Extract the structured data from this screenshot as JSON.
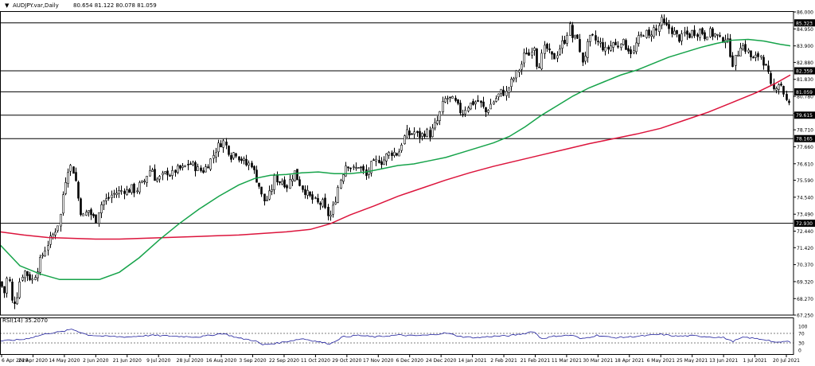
{
  "header": {
    "arrow": "▼",
    "symbol_timeframe": "AUDJPY.var,Daily",
    "ohlc": "80.654 81.122 80.078 81.059"
  },
  "rsi_header": "RSI(14) 35.2070",
  "colors": {
    "background": "#ffffff",
    "candle_up": "#ffffff",
    "candle_down": "#000000",
    "candle_outline": "#000000",
    "ma_fast": "#16a34a",
    "ma_slow": "#dc143c",
    "rsi_line": "#1e1e9c",
    "level_line": "#000000",
    "level_label_bg": "#000000",
    "level_label_text": "#ffffff"
  },
  "chart_data": [
    {
      "type": "candlestick",
      "title": "",
      "symbol": "AUDJPY.var",
      "timeframe": "Daily",
      "last_ohlc": {
        "open": 80.654,
        "high": 81.122,
        "low": 80.078,
        "close": 81.059
      },
      "ylim": [
        67.25,
        86.0
      ],
      "y_ticks": [
        86.0,
        84.95,
        83.9,
        82.88,
        81.83,
        80.78,
        79.73,
        78.71,
        77.66,
        76.61,
        75.59,
        74.54,
        73.49,
        72.44,
        71.42,
        70.37,
        69.32,
        68.27,
        67.25
      ],
      "y_tick_labels": [
        "86.000",
        "84.950",
        "83.900",
        "82.880",
        "81.830",
        "80.780",
        "79.730",
        "78.710",
        "77.660",
        "76.610",
        "75.590",
        "74.540",
        "73.490",
        "72.440",
        "71.420",
        "70.370",
        "69.320",
        "68.270",
        "67.250"
      ],
      "x_tick_labels": [
        "6 Apr 2020",
        "24 Apr 2020",
        "14 May 2020",
        "2 Jun 2020",
        "21 Jun 2020",
        "9 Jul 2020",
        "28 Jul 2020",
        "16 Aug 2020",
        "3 Sep 2020",
        "22 Sep 2020",
        "11 Oct 2020",
        "29 Oct 2020",
        "17 Nov 2020",
        "6 Dec 2020",
        "24 Dec 2020",
        "14 Jan 2021",
        "2 Feb 2021",
        "21 Feb 2021",
        "11 Mar 2021",
        "30 Mar 2021",
        "18 Apr 2021",
        "6 May 2021",
        "25 May 2021",
        "13 Jun 2021",
        "1 Jul 2021",
        "20 Jul 2021"
      ],
      "horizontal_levels": [
        {
          "value": 85.323,
          "label": "85.323"
        },
        {
          "value": 82.359,
          "label": "82.359"
        },
        {
          "value": 81.059,
          "label": "81.059"
        },
        {
          "value": 79.615,
          "label": "79.615"
        },
        {
          "value": 78.165,
          "label": "78.165"
        },
        {
          "value": 72.93,
          "label": "72.930"
        }
      ],
      "price_path": [
        [
          0,
          69.3
        ],
        [
          5,
          68.6
        ],
        [
          10,
          69.9
        ],
        [
          15,
          68.0
        ],
        [
          20,
          68.2
        ],
        [
          25,
          69.5
        ],
        [
          30,
          70.0
        ],
        [
          35,
          69.7
        ],
        [
          40,
          69.4
        ],
        [
          45,
          69.9
        ],
        [
          50,
          70.6
        ],
        [
          55,
          71.2
        ],
        [
          60,
          71.7
        ],
        [
          65,
          72.1
        ],
        [
          70,
          72.6
        ],
        [
          75,
          73.2
        ],
        [
          80,
          75.2
        ],
        [
          85,
          76.3
        ],
        [
          90,
          76.5
        ],
        [
          95,
          75.5
        ],
        [
          100,
          73.8
        ],
        [
          105,
          73.3
        ],
        [
          110,
          73.8
        ],
        [
          115,
          73.4
        ],
        [
          120,
          73.1
        ],
        [
          125,
          74.0
        ],
        [
          130,
          74.3
        ],
        [
          135,
          74.4
        ],
        [
          140,
          74.7
        ],
        [
          145,
          74.8
        ],
        [
          150,
          74.9
        ],
        [
          155,
          75.0
        ],
        [
          160,
          74.9
        ],
        [
          165,
          75.1
        ],
        [
          170,
          74.9
        ],
        [
          175,
          75.3
        ],
        [
          180,
          75.4
        ],
        [
          185,
          76.0
        ],
        [
          190,
          76.4
        ],
        [
          195,
          75.6
        ],
        [
          200,
          75.7
        ],
        [
          205,
          75.9
        ],
        [
          210,
          76.1
        ],
        [
          215,
          75.9
        ],
        [
          220,
          76.2
        ],
        [
          225,
          76.3
        ],
        [
          230,
          76.3
        ],
        [
          235,
          76.6
        ],
        [
          240,
          76.6
        ],
        [
          245,
          76.4
        ],
        [
          250,
          76.2
        ],
        [
          255,
          76.2
        ],
        [
          260,
          76.5
        ],
        [
          265,
          76.9
        ],
        [
          270,
          77.4
        ],
        [
          275,
          77.8
        ],
        [
          280,
          78.0
        ],
        [
          285,
          77.6
        ],
        [
          290,
          77.1
        ],
        [
          295,
          77.4
        ],
        [
          300,
          77.0
        ],
        [
          305,
          76.8
        ],
        [
          310,
          76.5
        ],
        [
          315,
          76.7
        ],
        [
          320,
          75.9
        ],
        [
          325,
          75.3
        ],
        [
          330,
          74.3
        ],
        [
          335,
          74.4
        ],
        [
          340,
          74.9
        ],
        [
          345,
          75.8
        ],
        [
          350,
          75.5
        ],
        [
          355,
          75.6
        ],
        [
          360,
          75.2
        ],
        [
          365,
          75.7
        ],
        [
          370,
          76.1
        ],
        [
          375,
          75.5
        ],
        [
          380,
          75.1
        ],
        [
          385,
          74.8
        ],
        [
          390,
          74.5
        ],
        [
          395,
          74.3
        ],
        [
          400,
          74.1
        ],
        [
          405,
          74.2
        ],
        [
          410,
          73.5
        ],
        [
          415,
          73.4
        ],
        [
          420,
          74.2
        ],
        [
          425,
          75.3
        ],
        [
          430,
          76.0
        ],
        [
          435,
          76.7
        ],
        [
          440,
          76.4
        ],
        [
          445,
          76.2
        ],
        [
          450,
          76.5
        ],
        [
          455,
          76.2
        ],
        [
          460,
          75.8
        ],
        [
          465,
          76.5
        ],
        [
          470,
          76.6
        ],
        [
          475,
          76.9
        ],
        [
          480,
          76.7
        ],
        [
          485,
          77.1
        ],
        [
          490,
          77.3
        ],
        [
          495,
          77.3
        ],
        [
          500,
          77.2
        ],
        [
          505,
          78.0
        ],
        [
          510,
          78.5
        ],
        [
          515,
          78.4
        ],
        [
          520,
          78.6
        ],
        [
          525,
          78.3
        ],
        [
          530,
          78.4
        ],
        [
          535,
          78.6
        ],
        [
          540,
          78.4
        ],
        [
          545,
          78.9
        ],
        [
          550,
          79.3
        ],
        [
          555,
          80.2
        ],
        [
          560,
          80.7
        ],
        [
          565,
          80.6
        ],
        [
          570,
          80.5
        ],
        [
          575,
          80.1
        ],
        [
          580,
          79.7
        ],
        [
          585,
          80.1
        ],
        [
          590,
          80.3
        ],
        [
          595,
          80.4
        ],
        [
          600,
          80.5
        ],
        [
          605,
          80.2
        ],
        [
          610,
          79.8
        ],
        [
          615,
          80.2
        ],
        [
          620,
          80.5
        ],
        [
          625,
          80.8
        ],
        [
          630,
          81.1
        ],
        [
          635,
          80.9
        ],
        [
          640,
          81.5
        ],
        [
          645,
          81.9
        ],
        [
          650,
          82.3
        ],
        [
          655,
          82.8
        ],
        [
          660,
          83.6
        ],
        [
          665,
          83.3
        ],
        [
          670,
          84.2
        ],
        [
          675,
          82.5
        ],
        [
          680,
          83.2
        ],
        [
          685,
          83.9
        ],
        [
          690,
          83.4
        ],
        [
          695,
          83.1
        ],
        [
          700,
          83.5
        ],
        [
          705,
          84.0
        ],
        [
          710,
          84.3
        ],
        [
          715,
          85.2
        ],
        [
          720,
          84.2
        ],
        [
          725,
          84.6
        ],
        [
          730,
          82.8
        ],
        [
          735,
          83.4
        ],
        [
          740,
          84.3
        ],
        [
          745,
          84.4
        ],
        [
          750,
          84.1
        ],
        [
          755,
          84.0
        ],
        [
          760,
          83.6
        ],
        [
          765,
          83.8
        ],
        [
          770,
          84.1
        ],
        [
          775,
          83.8
        ],
        [
          780,
          84.3
        ],
        [
          785,
          83.9
        ],
        [
          790,
          83.7
        ],
        [
          795,
          83.4
        ],
        [
          800,
          84.2
        ],
        [
          805,
          84.5
        ],
        [
          810,
          84.8
        ],
        [
          815,
          84.4
        ],
        [
          820,
          85.0
        ],
        [
          825,
          84.8
        ],
        [
          830,
          85.5
        ],
        [
          835,
          85.1
        ],
        [
          840,
          85.0
        ],
        [
          845,
          84.8
        ],
        [
          850,
          84.5
        ],
        [
          855,
          84.3
        ],
        [
          860,
          84.7
        ],
        [
          865,
          84.5
        ],
        [
          870,
          84.8
        ],
        [
          875,
          84.7
        ],
        [
          880,
          84.9
        ],
        [
          885,
          84.5
        ],
        [
          890,
          84.8
        ],
        [
          895,
          84.6
        ],
        [
          900,
          84.6
        ],
        [
          905,
          84.2
        ],
        [
          910,
          84.5
        ],
        [
          915,
          84.0
        ],
        [
          920,
          82.8
        ],
        [
          925,
          83.2
        ],
        [
          930,
          84.0
        ],
        [
          935,
          83.8
        ],
        [
          940,
          83.5
        ],
        [
          945,
          83.0
        ],
        [
          950,
          83.2
        ],
        [
          955,
          83.4
        ],
        [
          960,
          82.8
        ],
        [
          965,
          82.1
        ],
        [
          970,
          81.0
        ],
        [
          975,
          81.5
        ],
        [
          980,
          81.7
        ],
        [
          985,
          80.9
        ],
        [
          990,
          80.1
        ],
        [
          993,
          80.6
        ]
      ],
      "ma_fast_path": [
        [
          0,
          71.6
        ],
        [
          25,
          70.3
        ],
        [
          50,
          69.8
        ],
        [
          75,
          69.45
        ],
        [
          100,
          69.45
        ],
        [
          125,
          69.45
        ],
        [
          150,
          69.9
        ],
        [
          175,
          70.8
        ],
        [
          200,
          71.9
        ],
        [
          225,
          72.9
        ],
        [
          250,
          73.8
        ],
        [
          275,
          74.6
        ],
        [
          300,
          75.3
        ],
        [
          320,
          75.7
        ],
        [
          340,
          75.9
        ],
        [
          360,
          75.95
        ],
        [
          380,
          76.05
        ],
        [
          400,
          76.1
        ],
        [
          420,
          76.0
        ],
        [
          440,
          76.0
        ],
        [
          460,
          76.1
        ],
        [
          480,
          76.3
        ],
        [
          500,
          76.5
        ],
        [
          520,
          76.6
        ],
        [
          540,
          76.8
        ],
        [
          560,
          77.0
        ],
        [
          580,
          77.3
        ],
        [
          600,
          77.6
        ],
        [
          620,
          77.9
        ],
        [
          640,
          78.3
        ],
        [
          660,
          78.9
        ],
        [
          680,
          79.6
        ],
        [
          700,
          80.2
        ],
        [
          720,
          80.8
        ],
        [
          740,
          81.3
        ],
        [
          760,
          81.7
        ],
        [
          780,
          82.1
        ],
        [
          800,
          82.4
        ],
        [
          820,
          82.8
        ],
        [
          840,
          83.2
        ],
        [
          860,
          83.5
        ],
        [
          880,
          83.8
        ],
        [
          900,
          84.05
        ],
        [
          920,
          84.25
        ],
        [
          940,
          84.3
        ],
        [
          960,
          84.2
        ],
        [
          980,
          84.0
        ],
        [
          993,
          83.9
        ]
      ],
      "ma_slow_path": [
        [
          0,
          72.4
        ],
        [
          30,
          72.2
        ],
        [
          60,
          72.05
        ],
        [
          90,
          72.0
        ],
        [
          120,
          71.95
        ],
        [
          150,
          71.95
        ],
        [
          180,
          72.0
        ],
        [
          210,
          72.05
        ],
        [
          240,
          72.1
        ],
        [
          270,
          72.15
        ],
        [
          300,
          72.2
        ],
        [
          330,
          72.3
        ],
        [
          360,
          72.4
        ],
        [
          390,
          72.55
        ],
        [
          415,
          72.9
        ],
        [
          440,
          73.45
        ],
        [
          470,
          74.0
        ],
        [
          500,
          74.6
        ],
        [
          530,
          75.1
        ],
        [
          560,
          75.6
        ],
        [
          590,
          76.05
        ],
        [
          620,
          76.45
        ],
        [
          650,
          76.8
        ],
        [
          680,
          77.15
        ],
        [
          710,
          77.5
        ],
        [
          740,
          77.85
        ],
        [
          770,
          78.15
        ],
        [
          800,
          78.45
        ],
        [
          830,
          78.8
        ],
        [
          860,
          79.3
        ],
        [
          890,
          79.8
        ],
        [
          920,
          80.4
        ],
        [
          950,
          81.0
        ],
        [
          975,
          81.6
        ],
        [
          993,
          82.1
        ]
      ]
    },
    {
      "type": "line",
      "title": "RSI(14) 35.2070",
      "ylim": [
        0,
        100
      ],
      "y_tick_labels": [
        "100",
        "70",
        "30",
        "0"
      ],
      "levels": [
        70,
        30
      ],
      "last_value": 35.207,
      "path": [
        [
          0,
          38
        ],
        [
          30,
          45
        ],
        [
          60,
          70
        ],
        [
          80,
          78
        ],
        [
          90,
          88
        ],
        [
          110,
          64
        ],
        [
          130,
          58
        ],
        [
          160,
          55
        ],
        [
          190,
          62
        ],
        [
          220,
          58
        ],
        [
          250,
          55
        ],
        [
          280,
          70
        ],
        [
          300,
          50
        ],
        [
          320,
          40
        ],
        [
          330,
          22
        ],
        [
          350,
          30
        ],
        [
          380,
          48
        ],
        [
          400,
          35
        ],
        [
          415,
          26
        ],
        [
          430,
          55
        ],
        [
          450,
          62
        ],
        [
          470,
          55
        ],
        [
          500,
          63
        ],
        [
          520,
          60
        ],
        [
          540,
          63
        ],
        [
          560,
          72
        ],
        [
          580,
          56
        ],
        [
          600,
          52
        ],
        [
          620,
          58
        ],
        [
          640,
          60
        ],
        [
          660,
          70
        ],
        [
          670,
          80
        ],
        [
          680,
          48
        ],
        [
          700,
          60
        ],
        [
          720,
          62
        ],
        [
          730,
          46
        ],
        [
          750,
          62
        ],
        [
          770,
          52
        ],
        [
          790,
          55
        ],
        [
          810,
          60
        ],
        [
          830,
          66
        ],
        [
          850,
          58
        ],
        [
          870,
          60
        ],
        [
          890,
          56
        ],
        [
          910,
          52
        ],
        [
          920,
          36
        ],
        [
          935,
          54
        ],
        [
          950,
          48
        ],
        [
          965,
          42
        ],
        [
          975,
          30
        ],
        [
          985,
          36
        ],
        [
          993,
          35.2
        ]
      ]
    }
  ]
}
